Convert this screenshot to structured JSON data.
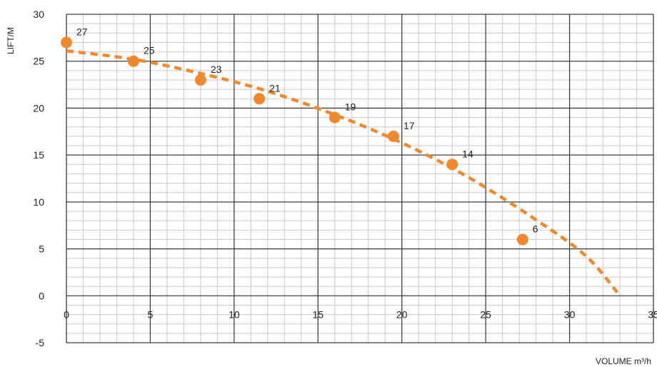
{
  "chart_data": {
    "type": "scatter",
    "xlabel": "VOLUME m³/h",
    "ylabel": "LIFT/M",
    "xlim": [
      0,
      35
    ],
    "ylim": [
      -5,
      30
    ],
    "x_ticks": [
      0,
      5,
      10,
      15,
      20,
      25,
      30,
      35
    ],
    "y_ticks": [
      -5,
      0,
      5,
      10,
      15,
      20,
      25,
      30
    ],
    "grid": true,
    "series": [
      {
        "type": "scatter",
        "x": [
          0,
          4,
          8,
          11.5,
          16,
          19.5,
          23,
          27.2
        ],
        "y": [
          27,
          25,
          23,
          21,
          19,
          17,
          14,
          6
        ],
        "labels": [
          "27",
          "25",
          "23",
          "21",
          "19",
          "17",
          "14",
          "6"
        ]
      },
      {
        "type": "line",
        "style": "dashed",
        "x": [
          0,
          4,
          8,
          12,
          16,
          20,
          24,
          28,
          31,
          33
        ],
        "y": [
          26.1,
          25.2,
          23.7,
          21.8,
          19.3,
          16.3,
          12.6,
          8.1,
          4.2,
          0
        ]
      }
    ],
    "colors": {
      "accent": "#F0892E",
      "grid_major": "#3f3f3f",
      "grid_minor": "#c8c8c8"
    }
  }
}
